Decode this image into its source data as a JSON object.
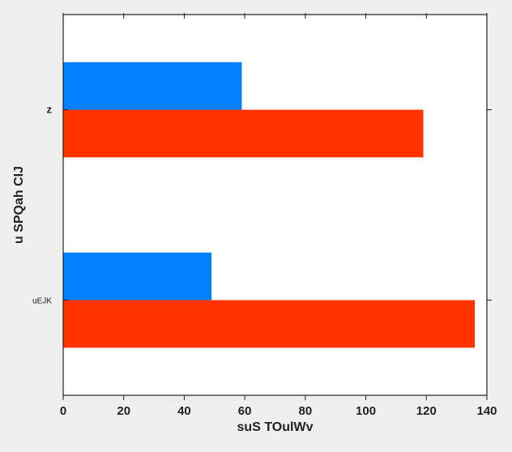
{
  "chart_data": {
    "type": "bar",
    "orientation": "horizontal",
    "categories": [
      "uEJK",
      "z"
    ],
    "series": [
      {
        "values": [
          136,
          119
        ],
        "color": "#ff3300"
      },
      {
        "values": [
          49,
          59
        ],
        "color": "#0080ff"
      }
    ],
    "xlabel": "suS TOulWv",
    "ylabel": "u SPQah CIJ",
    "xlim": [
      0,
      140
    ],
    "xticks": [
      "0",
      "20",
      "40",
      "60",
      "80",
      "100",
      "120",
      "140"
    ],
    "grid": false,
    "legend": "none"
  },
  "colors": {
    "background": "#efefef",
    "plot_background": "#ffffff",
    "axis": "#222222"
  }
}
